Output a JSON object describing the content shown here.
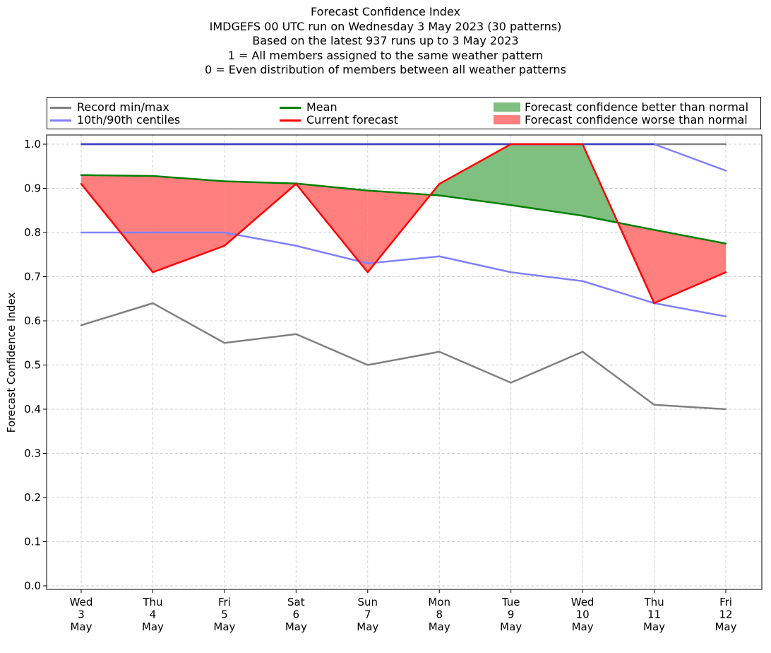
{
  "title_lines": [
    "Forecast Confidence Index",
    "IMDGEFS 00 UTC run on Wednesday 3 May 2023 (30 patterns)",
    "Based on the latest 937 runs up to 3 May 2023",
    "1 = All members assigned to the same weather pattern",
    "0 = Even distribution of members between all weather patterns"
  ],
  "legend": {
    "record": "Record min/max",
    "centiles": "10th/90th centiles",
    "mean": "Mean",
    "current": "Current forecast",
    "better": "Forecast confidence better than normal",
    "worse": "Forecast confidence worse than normal"
  },
  "colors": {
    "record": "#808080",
    "centiles": "#8080ff",
    "mean": "#008000",
    "current": "#ff0000",
    "better": "#7fbf7f",
    "worse": "#ff7f7f",
    "overlap": "#4040bf"
  },
  "chart_data": {
    "type": "line",
    "ylabel": "Forecast Confidence Index",
    "ylim": [
      0.0,
      1.0
    ],
    "yticks": [
      "0.0",
      "0.1",
      "0.2",
      "0.3",
      "0.4",
      "0.5",
      "0.6",
      "0.7",
      "0.8",
      "0.9",
      "1.0"
    ],
    "categories": [
      [
        "Wed",
        "3",
        "May"
      ],
      [
        "Thu",
        "4",
        "May"
      ],
      [
        "Fri",
        "5",
        "May"
      ],
      [
        "Sat",
        "6",
        "May"
      ],
      [
        "Sun",
        "7",
        "May"
      ],
      [
        "Mon",
        "8",
        "May"
      ],
      [
        "Tue",
        "9",
        "May"
      ],
      [
        "Wed",
        "10",
        "May"
      ],
      [
        "Thu",
        "11",
        "May"
      ],
      [
        "Fri",
        "12",
        "May"
      ]
    ],
    "grid": true,
    "series": {
      "record_min": [
        0.59,
        0.64,
        0.55,
        0.57,
        0.5,
        0.53,
        0.46,
        0.53,
        0.41,
        0.4
      ],
      "record_max": [
        1.0,
        1.0,
        1.0,
        1.0,
        1.0,
        1.0,
        1.0,
        1.0,
        1.0,
        1.0
      ],
      "p10": [
        0.8,
        0.8,
        0.8,
        0.77,
        0.73,
        0.746,
        0.71,
        0.69,
        0.64,
        0.61
      ],
      "p90": [
        1.0,
        1.0,
        1.0,
        1.0,
        1.0,
        1.0,
        1.0,
        1.0,
        1.0,
        0.94
      ],
      "mean": [
        0.93,
        0.928,
        0.916,
        0.911,
        0.895,
        0.884,
        0.862,
        0.838,
        0.806,
        0.775
      ],
      "current": [
        0.91,
        0.71,
        0.77,
        0.91,
        0.71,
        0.91,
        1.0,
        1.0,
        0.64,
        0.71
      ]
    }
  }
}
